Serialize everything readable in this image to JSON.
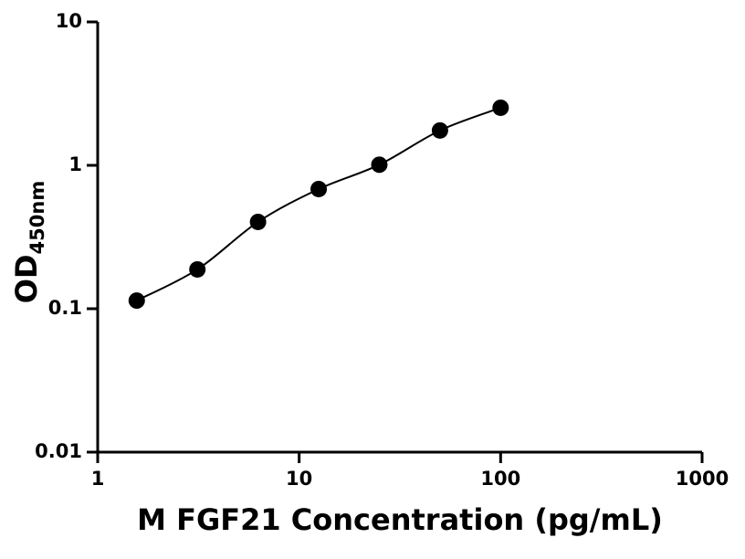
{
  "chart_data": {
    "type": "scatter",
    "x_label": "M FGF21 Concentration (pg/mL)",
    "y_label": "OD",
    "y_label_subscript": "450nm",
    "x": [
      1.5625,
      3.125,
      6.25,
      12.5,
      25,
      50,
      100
    ],
    "values": [
      0.114,
      0.188,
      0.403,
      0.683,
      1.01,
      1.75,
      2.52
    ],
    "color": "#000000",
    "fit_line": true,
    "xscale": "log",
    "yscale": "log",
    "xlim": [
      1,
      1000
    ],
    "xticks": [
      1,
      10,
      100,
      1000
    ],
    "ylim": [
      0.01,
      10
    ],
    "yticks": [
      0.01,
      0.1,
      1,
      10
    ],
    "grid": false
  }
}
